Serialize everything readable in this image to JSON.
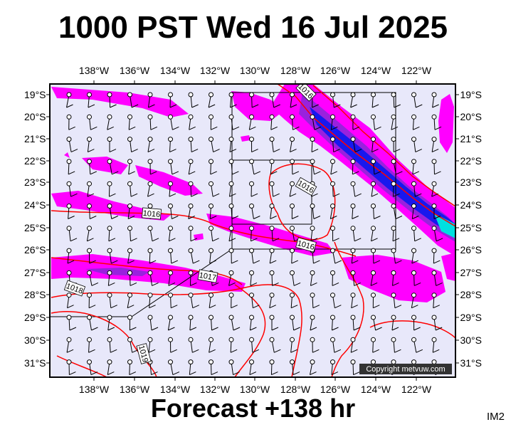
{
  "title": "1000 PST Wed 16 Jul 2025",
  "footer": "Forecast +138 hr",
  "product_code": "IM2",
  "copyright": "Copyright metvuw.com",
  "lon_labels": [
    "138°W",
    "136°W",
    "134°W",
    "132°W",
    "130°W",
    "128°W",
    "126°W",
    "124°W",
    "122°W"
  ],
  "lat_labels": [
    "19°S",
    "20°S",
    "21°S",
    "22°S",
    "23°S",
    "24°S",
    "25°S",
    "26°S",
    "27°S",
    "28°S",
    "29°S",
    "30°S",
    "31°S"
  ],
  "isobar_labels": [
    "1016",
    "1016",
    "1016",
    "1016",
    "1017",
    "1018",
    "1019"
  ],
  "colors": {
    "background": "#e8e8fa",
    "isobar": "#ff0000",
    "rain_light": "#ff00ff",
    "rain_moderate": "#9922dd",
    "rain_heavy": "#1818ee",
    "rain_extreme": "#00e0e0"
  }
}
